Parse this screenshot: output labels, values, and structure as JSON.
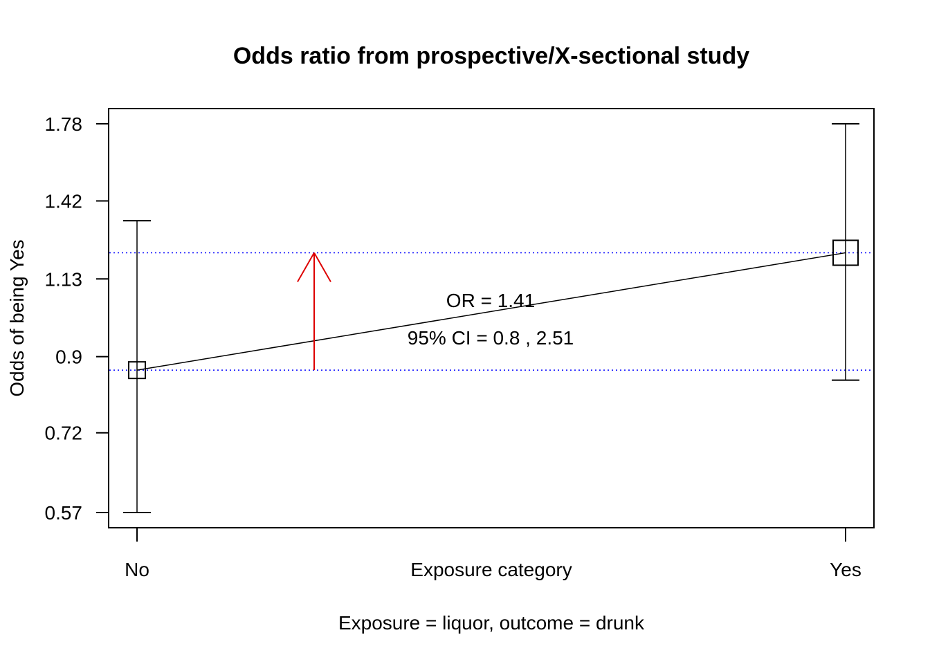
{
  "chart_data": {
    "type": "scatter",
    "title": "Odds ratio from prospective/X-sectional study",
    "xlabel": "Exposure category",
    "subtitle": "Exposure = liquor, outcome = drunk",
    "ylabel": "Odds of being Yes",
    "log_scale_y": true,
    "ylim": [
      0.55,
      1.83
    ],
    "categories": [
      "No",
      "Yes"
    ],
    "y_ticks": [
      {
        "value": 0.57,
        "label": "0.57"
      },
      {
        "value": 0.72,
        "label": "0.72"
      },
      {
        "value": 0.9,
        "label": "0.9"
      },
      {
        "value": 1.13,
        "label": "1.13"
      },
      {
        "value": 1.42,
        "label": "1.42"
      },
      {
        "value": 1.78,
        "label": "1.78"
      }
    ],
    "points": [
      {
        "category": "No",
        "odds": 0.865,
        "ci_low": 0.57,
        "ci_high": 1.34
      },
      {
        "category": "Yes",
        "odds": 1.22,
        "ci_low": 0.84,
        "ci_high": 1.78
      }
    ],
    "reference_lines": [
      0.865,
      1.22
    ],
    "annotations": {
      "or_text": "OR =  1.41",
      "ci_text": "95% CI = 0.8 , 2.51"
    },
    "arrow": {
      "from_odds": 0.865,
      "to_odds": 1.22
    },
    "colors": {
      "reference_line": "#0000ff",
      "arrow": "#dd0000",
      "axis": "#000000"
    }
  }
}
